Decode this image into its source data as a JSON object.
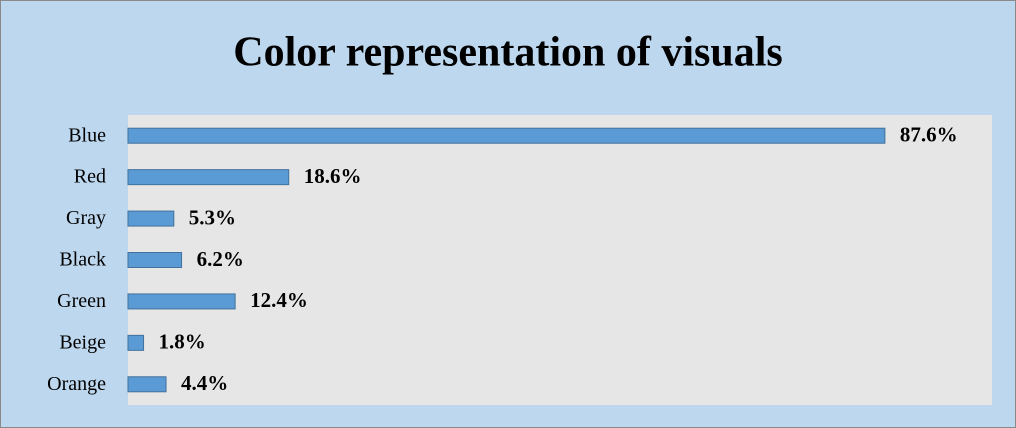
{
  "chart_data": {
    "type": "bar",
    "orientation": "horizontal",
    "title": "Color representation of visuals",
    "categories": [
      "Blue",
      "Red",
      "Gray",
      "Black",
      "Green",
      "Beige",
      "Orange"
    ],
    "values": [
      87.6,
      18.6,
      5.3,
      6.2,
      12.4,
      1.8,
      4.4
    ],
    "value_labels": [
      "87.6%",
      "18.6%",
      "5.3%",
      "6.2%",
      "12.4%",
      "1.8%",
      "4.4%"
    ],
    "color": "#5b9bd5",
    "xlim": [
      0,
      100
    ],
    "grid": false
  }
}
